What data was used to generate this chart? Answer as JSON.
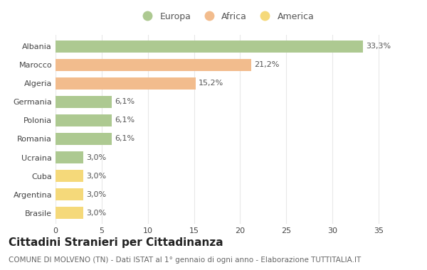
{
  "categories": [
    "Albania",
    "Marocco",
    "Algeria",
    "Germania",
    "Polonia",
    "Romania",
    "Ucraina",
    "Cuba",
    "Argentina",
    "Brasile"
  ],
  "values": [
    33.3,
    21.2,
    15.2,
    6.1,
    6.1,
    6.1,
    3.0,
    3.0,
    3.0,
    3.0
  ],
  "labels": [
    "33,3%",
    "21,2%",
    "15,2%",
    "6,1%",
    "6,1%",
    "6,1%",
    "3,0%",
    "3,0%",
    "3,0%",
    "3,0%"
  ],
  "colors": [
    "#adc991",
    "#f2bc8d",
    "#f2bc8d",
    "#adc991",
    "#adc991",
    "#adc991",
    "#adc991",
    "#f5d97a",
    "#f5d97a",
    "#f5d97a"
  ],
  "legend_labels": [
    "Europa",
    "Africa",
    "America"
  ],
  "legend_colors": [
    "#adc991",
    "#f2bc8d",
    "#f5d97a"
  ],
  "title": "Cittadini Stranieri per Cittadinanza",
  "subtitle": "COMUNE DI MOLVENO (TN) - Dati ISTAT al 1° gennaio di ogni anno - Elaborazione TUTTITALIA.IT",
  "xlim": [
    0,
    37
  ],
  "xticks": [
    0,
    5,
    10,
    15,
    20,
    25,
    30,
    35
  ],
  "background_color": "#ffffff",
  "grid_color": "#e8e8e8",
  "bar_height": 0.65,
  "title_fontsize": 11,
  "subtitle_fontsize": 7.5,
  "label_fontsize": 8,
  "tick_fontsize": 8,
  "legend_fontsize": 9
}
